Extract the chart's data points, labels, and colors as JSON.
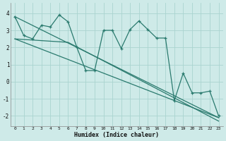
{
  "title": "",
  "xlabel": "Humidex (Indice chaleur)",
  "ylabel": "",
  "bg_color": "#ceeae8",
  "grid_color": "#aad4d0",
  "line_color": "#2a7a6e",
  "xlim": [
    -0.5,
    23.5
  ],
  "ylim": [
    -2.6,
    4.6
  ],
  "xticks": [
    0,
    1,
    2,
    3,
    4,
    5,
    6,
    7,
    8,
    9,
    10,
    11,
    12,
    13,
    14,
    15,
    16,
    17,
    18,
    19,
    20,
    21,
    22,
    23
  ],
  "yticks": [
    -2,
    -1,
    0,
    1,
    2,
    3,
    4
  ],
  "series": [
    [
      0,
      3.8
    ],
    [
      1,
      2.7
    ],
    [
      2,
      2.5
    ],
    [
      3,
      3.3
    ],
    [
      4,
      3.2
    ],
    [
      5,
      3.9
    ],
    [
      6,
      3.5
    ],
    [
      7,
      2.0
    ],
    [
      8,
      0.65
    ],
    [
      9,
      0.65
    ],
    [
      10,
      3.0
    ],
    [
      11,
      3.0
    ],
    [
      12,
      1.95
    ],
    [
      13,
      3.05
    ],
    [
      14,
      3.55
    ],
    [
      15,
      3.05
    ],
    [
      16,
      2.55
    ],
    [
      17,
      2.55
    ],
    [
      18,
      -1.1
    ],
    [
      19,
      0.5
    ],
    [
      20,
      -0.65
    ],
    [
      21,
      -0.65
    ],
    [
      22,
      -0.55
    ],
    [
      23,
      -2.0
    ]
  ],
  "linear1": [
    [
      0,
      3.8
    ],
    [
      23,
      -2.1
    ]
  ],
  "linear2": [
    [
      0,
      2.5
    ],
    [
      23,
      -2.1
    ]
  ],
  "linear3": [
    [
      0,
      2.5
    ],
    [
      6,
      2.3
    ],
    [
      23,
      -2.3
    ]
  ]
}
